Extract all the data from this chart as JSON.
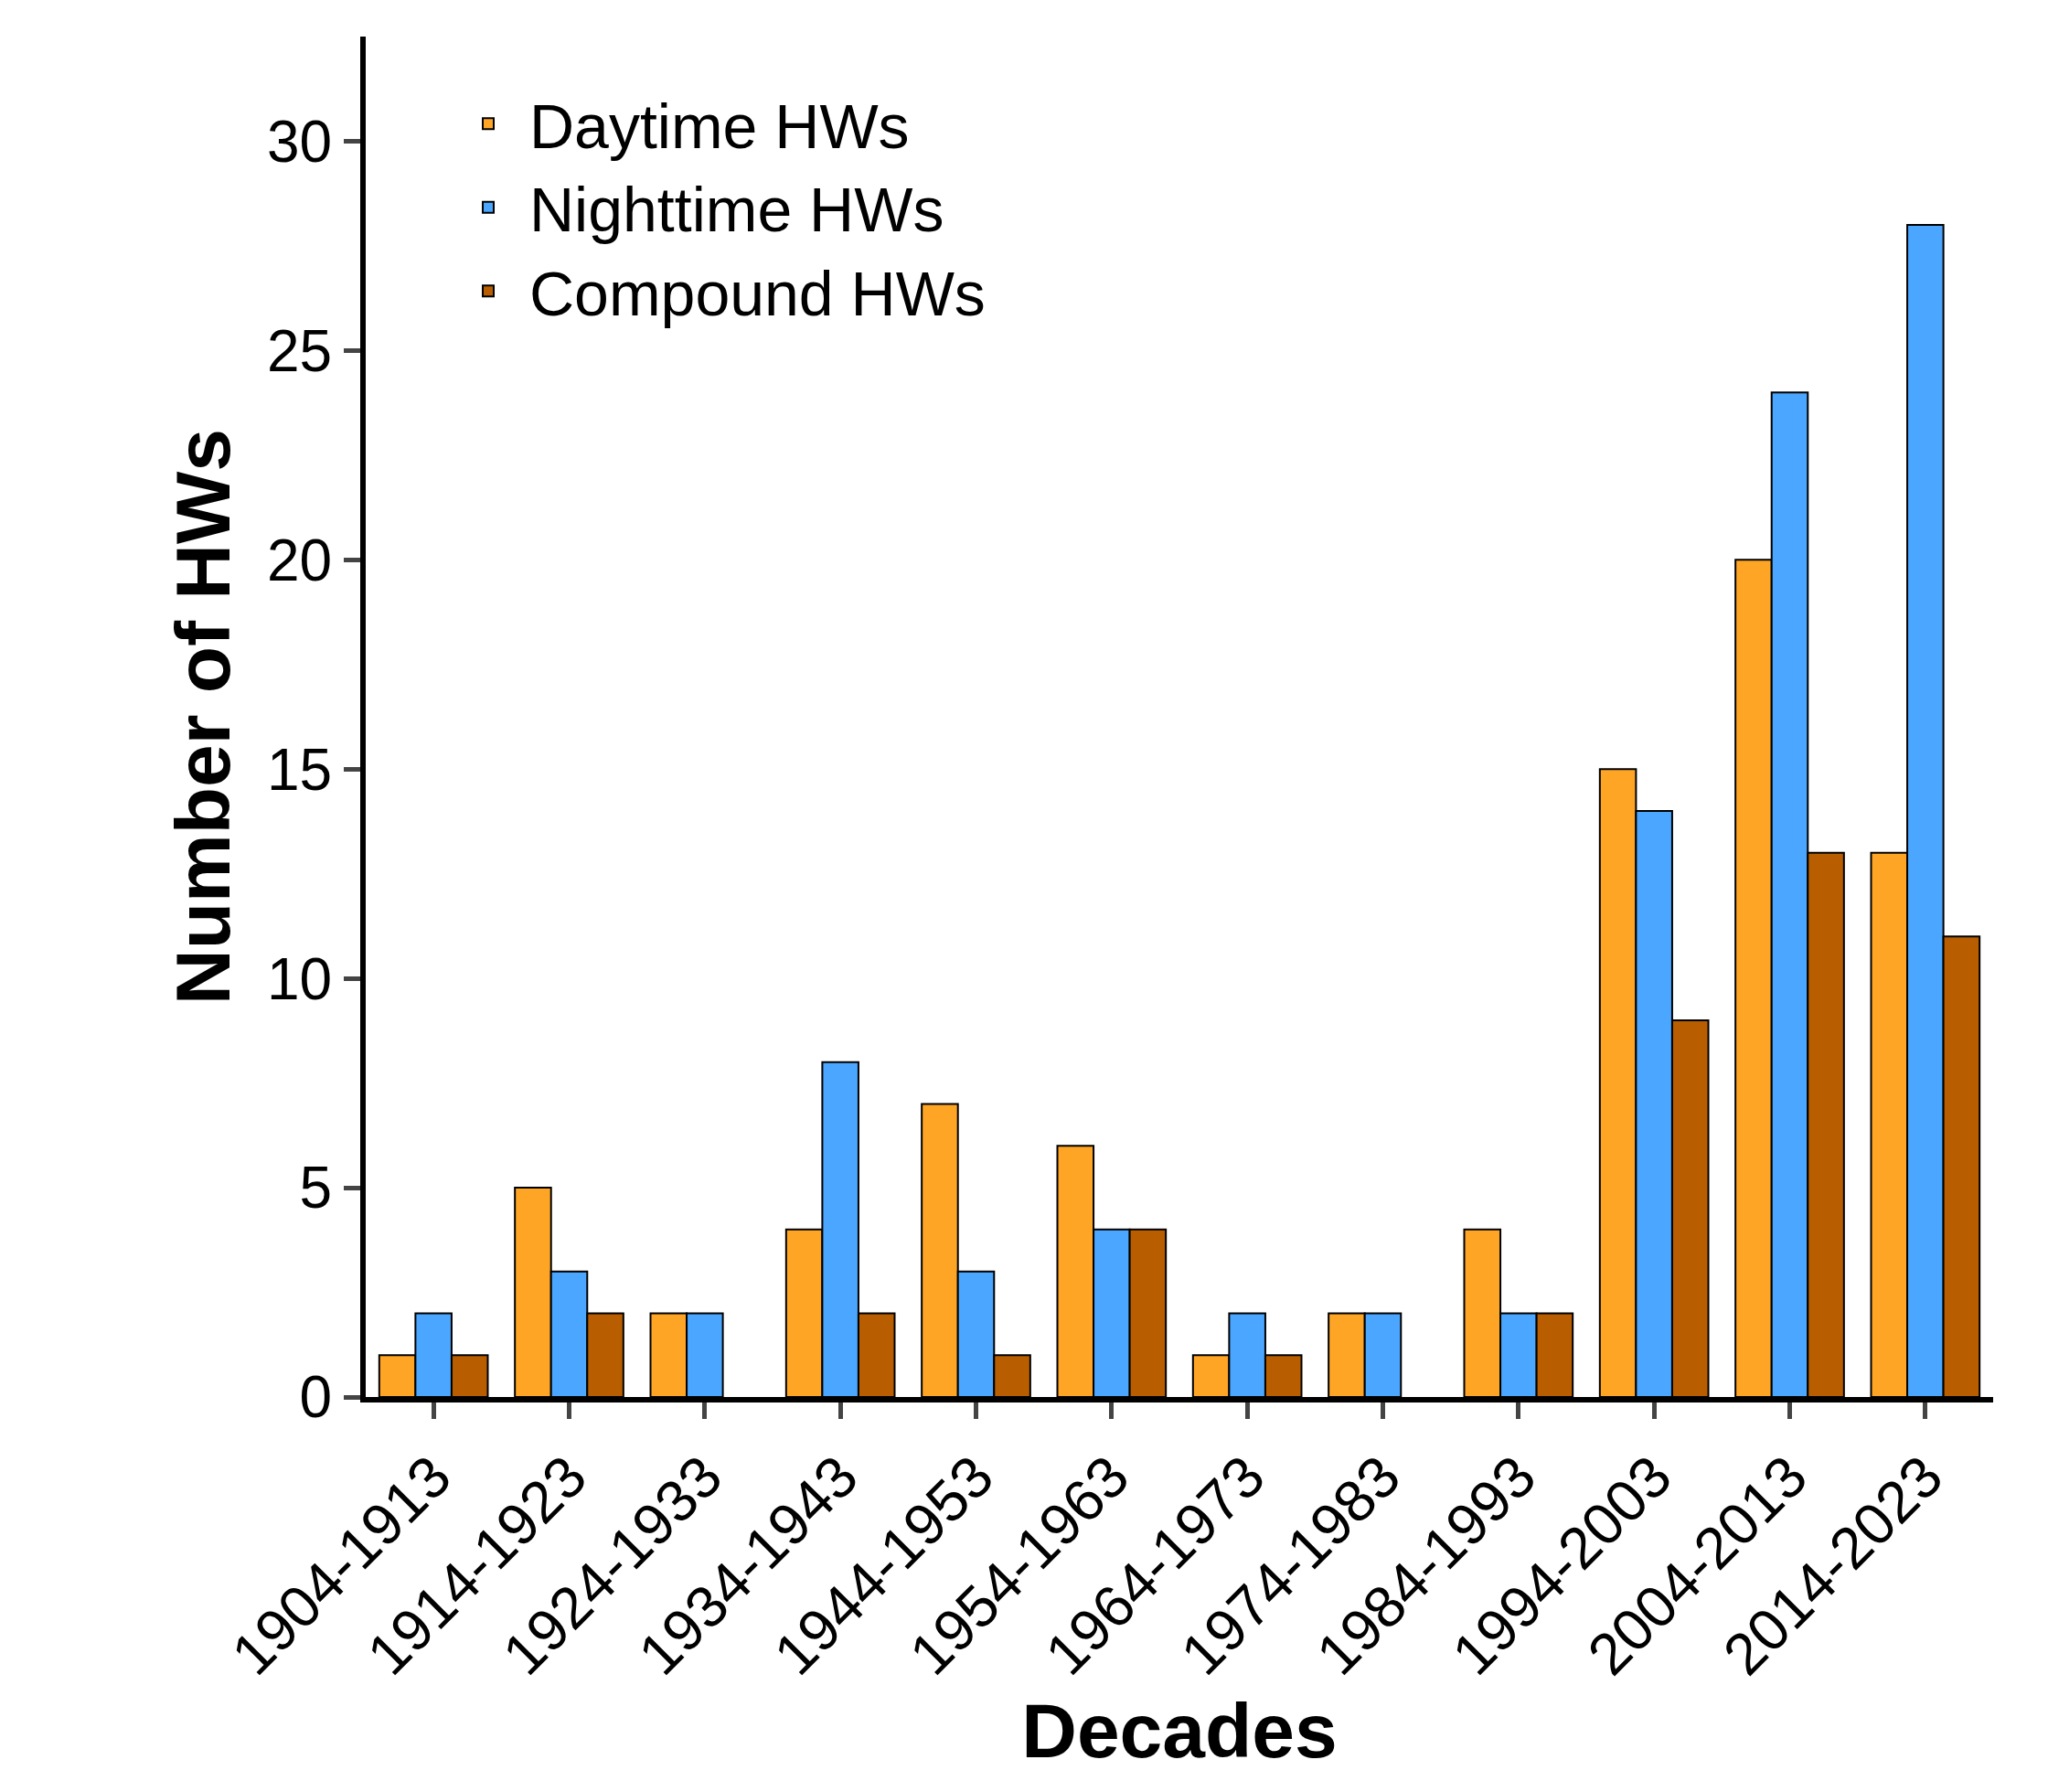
{
  "chart_data": {
    "type": "bar",
    "xlabel": "Decades",
    "ylabel": "Number of HWs",
    "categories": [
      "1904-1913",
      "1914-1923",
      "1924-1933",
      "1934-1943",
      "1944-1953",
      "1954-1963",
      "1964-1973",
      "1974-1983",
      "1984-1993",
      "1994-2003",
      "2004-2013",
      "2014-2023"
    ],
    "series": [
      {
        "name": "Daytime HWs",
        "color": "#ffa526",
        "values": [
          1,
          5,
          2,
          4,
          7,
          6,
          1,
          2,
          4,
          15,
          20,
          13
        ]
      },
      {
        "name": "Nighttime HWs",
        "color": "#4aa6ff",
        "values": [
          2,
          3,
          2,
          8,
          3,
          4,
          2,
          2,
          2,
          14,
          24,
          28
        ]
      },
      {
        "name": "Compound HWs",
        "color": "#b85e00",
        "values": [
          1,
          2,
          0,
          2,
          1,
          4,
          1,
          0,
          2,
          9,
          13,
          11
        ]
      }
    ],
    "ylim": [
      0,
      32.5
    ],
    "yticks": [
      0,
      5,
      10,
      15,
      20,
      25,
      30
    ],
    "legend": "top left"
  }
}
